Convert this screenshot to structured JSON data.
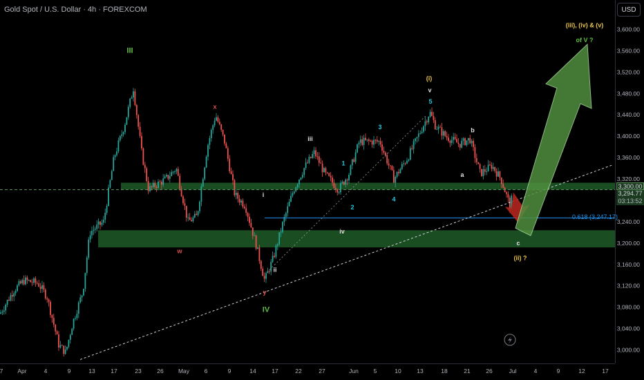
{
  "header": {
    "symbol_title": "Gold Spot / U.S. Dollar · 4h · FOREXCOM",
    "currency_button": "USD"
  },
  "price_tags": {
    "level": "3,300.00",
    "last": "3,294.77",
    "countdown": "03:13:52"
  },
  "fib_label": "0.618 (3,247.17)",
  "colors": {
    "up_candle": "#26a69a",
    "down_candle": "#ef5350",
    "zone_fill": "#1f5a27",
    "arrow_green": "#4f8f3f",
    "arrow_red": "#b3261e",
    "fib_line": "#2196f3",
    "label_yellow": "#e8c547",
    "label_green": "#5fbf3f",
    "label_cyan": "#26c6da",
    "label_red": "#e04f4f"
  },
  "chart_data": {
    "type": "candlestick",
    "title": "Gold Spot / U.S. Dollar · 4h · FOREXCOM",
    "y_ticks": [
      3000,
      3040,
      3080,
      3120,
      3160,
      3200,
      3240,
      3280,
      3320,
      3360,
      3400,
      3440,
      3480,
      3520,
      3560,
      3600
    ],
    "y_tick_labels": [
      "3,000.00",
      "3,040.00",
      "3,080.00",
      "3,120.00",
      "3,160.00",
      "3,200.00",
      "3,240.00",
      "3,280.00",
      "3,320.00",
      "3,360.00",
      "3,400.00",
      "3,440.00",
      "3,480.00",
      "3,520.00",
      "3,560.00",
      "3,600.00"
    ],
    "ylim": [
      2985,
      3625
    ],
    "x_tick_labels": [
      "7",
      "Apr",
      "4",
      "9",
      "13",
      "17",
      "23",
      "26",
      "May",
      "6",
      "9",
      "14",
      "17",
      "22",
      "27",
      "Jun",
      "5",
      "10",
      "13",
      "18",
      "21",
      "26",
      "Jul",
      "4",
      "9",
      "12",
      "17"
    ],
    "zones": [
      {
        "from": 3300,
        "to": 3313,
        "label": ""
      },
      {
        "from": 3192,
        "to": 3224,
        "label": ""
      }
    ],
    "fib_level": {
      "value": 3247.17,
      "label": "0.618 (3,247.17)"
    },
    "dashed_level": 3300,
    "last_price": 3294.77,
    "wave_labels": [
      {
        "text": "III",
        "price": 3560,
        "color": "green"
      },
      {
        "text": "x",
        "price": 3455,
        "color": "red"
      },
      {
        "text": "w",
        "price": 3185,
        "color": "red"
      },
      {
        "text": "IV",
        "price": 3075,
        "color": "green"
      },
      {
        "text": "y",
        "price": 3108,
        "color": "red"
      },
      {
        "text": "i",
        "price": 3290,
        "color": "white"
      },
      {
        "text": "ii",
        "price": 3150,
        "color": "white"
      },
      {
        "text": "iii",
        "price": 3395,
        "color": "white"
      },
      {
        "text": "iv",
        "price": 3222,
        "color": "white"
      },
      {
        "text": "1",
        "price": 3349,
        "color": "cyan"
      },
      {
        "text": "2",
        "price": 3267,
        "color": "cyan"
      },
      {
        "text": "3",
        "price": 3417,
        "color": "cyan"
      },
      {
        "text": "4",
        "price": 3282,
        "color": "cyan"
      },
      {
        "text": "5",
        "price": 3465,
        "color": "cyan"
      },
      {
        "text": "v",
        "price": 3486,
        "color": "white"
      },
      {
        "text": "(i)",
        "price": 3508,
        "color": "yellow"
      },
      {
        "text": "a",
        "price": 3328,
        "color": "white"
      },
      {
        "text": "b",
        "price": 3411,
        "color": "white"
      },
      {
        "text": "c",
        "price": 3200,
        "color": "white"
      },
      {
        "text": "(ii) ?",
        "price": 3172,
        "color": "yellow"
      },
      {
        "text": "(iii), (iv) & (v)",
        "price": 3608,
        "color": "yellow"
      },
      {
        "text": "of V ?",
        "price": 3580,
        "color": "green"
      }
    ],
    "grid": false
  }
}
